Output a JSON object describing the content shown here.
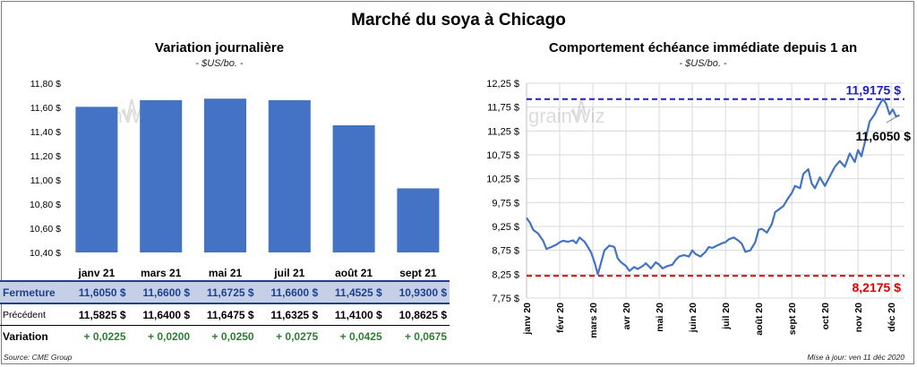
{
  "header": {
    "title": "Marché du soya à Chicago"
  },
  "left": {
    "title": "Variation journalière",
    "unit": "- $US/bo. -"
  },
  "right": {
    "title": "Comportement échéance immédiate depuis 1 an",
    "unit": "- $US/bo. -"
  },
  "watermark": "grainWiz",
  "table": {
    "rows": [
      {
        "label": "Fermeture",
        "values": [
          "11,6050 $",
          "11,6600 $",
          "11,6725 $",
          "11,6600 $",
          "11,4525 $",
          "10,9300 $"
        ]
      },
      {
        "label": "Précédent",
        "values": [
          "11,5825 $",
          "11,6400 $",
          "11,6475 $",
          "11,6325 $",
          "11,4100 $",
          "10,8625 $"
        ]
      },
      {
        "label": "Variation",
        "values": [
          "+ 0,0225",
          "+ 0,0200",
          "+ 0,0250",
          "+ 0,0275",
          "+ 0,0425",
          "+ 0,0675"
        ]
      }
    ]
  },
  "footer": {
    "source": "Source: CME Group",
    "updated": "Mise à jour: ven 11 déc 2020"
  },
  "colors": {
    "bar": "#4472c4",
    "line": "#4472c4",
    "high": "#1f1fbf",
    "low": "#e00000",
    "positive": "#2e7d32"
  },
  "chart_data": [
    {
      "type": "bar",
      "title": "Variation journalière",
      "subtitle": "- $US/bo. -",
      "categories": [
        "janv 21",
        "mars 21",
        "mai 21",
        "juil 21",
        "août 21",
        "sept 21"
      ],
      "values": [
        11.605,
        11.66,
        11.6725,
        11.66,
        11.4525,
        10.93
      ],
      "ylim": [
        10.4,
        11.8
      ],
      "yticks": [
        "10,40 $",
        "10,60 $",
        "10,80 $",
        "11,00 $",
        "11,20 $",
        "11,40 $",
        "11,60 $",
        "11,80 $"
      ],
      "grid": false
    },
    {
      "type": "line",
      "title": "Comportement échéance immédiate depuis 1 an",
      "subtitle": "- $US/bo. -",
      "x_ticks": [
        "janv 20",
        "févr 20",
        "mars 20",
        "avr 20",
        "mai 20",
        "juin 20",
        "juil 20",
        "août 20",
        "sept 20",
        "oct 20",
        "nov 20",
        "déc 20"
      ],
      "ylim": [
        7.75,
        12.25
      ],
      "yticks": [
        "7,75 $",
        "8,25 $",
        "8,75 $",
        "9,25 $",
        "9,75 $",
        "10,25 $",
        "10,75 $",
        "11,25 $",
        "11,75 $",
        "12,25 $"
      ],
      "grid": true,
      "series": [
        {
          "values": [
            [
              0,
              9.43
            ],
            [
              0.1,
              9.33
            ],
            [
              0.2,
              9.18
            ],
            [
              0.35,
              9.1
            ],
            [
              0.5,
              8.95
            ],
            [
              0.6,
              8.78
            ],
            [
              0.75,
              8.82
            ],
            [
              0.9,
              8.87
            ],
            [
              1.0,
              8.92
            ],
            [
              1.1,
              8.95
            ],
            [
              1.25,
              8.93
            ],
            [
              1.4,
              8.96
            ],
            [
              1.5,
              8.9
            ],
            [
              1.6,
              9.02
            ],
            [
              1.75,
              8.93
            ],
            [
              1.85,
              8.82
            ],
            [
              1.95,
              8.7
            ],
            [
              2.05,
              8.5
            ],
            [
              2.15,
              8.25
            ],
            [
              2.25,
              8.5
            ],
            [
              2.35,
              8.75
            ],
            [
              2.5,
              8.85
            ],
            [
              2.65,
              8.82
            ],
            [
              2.75,
              8.58
            ],
            [
              2.85,
              8.5
            ],
            [
              3.0,
              8.42
            ],
            [
              3.1,
              8.32
            ],
            [
              3.25,
              8.4
            ],
            [
              3.35,
              8.36
            ],
            [
              3.5,
              8.42
            ],
            [
              3.6,
              8.48
            ],
            [
              3.75,
              8.37
            ],
            [
              3.9,
              8.5
            ],
            [
              4.0,
              8.45
            ],
            [
              4.1,
              8.37
            ],
            [
              4.25,
              8.42
            ],
            [
              4.4,
              8.45
            ],
            [
              4.5,
              8.55
            ],
            [
              4.6,
              8.62
            ],
            [
              4.75,
              8.65
            ],
            [
              4.9,
              8.62
            ],
            [
              5.0,
              8.75
            ],
            [
              5.1,
              8.67
            ],
            [
              5.25,
              8.62
            ],
            [
              5.4,
              8.72
            ],
            [
              5.5,
              8.82
            ],
            [
              5.6,
              8.8
            ],
            [
              5.75,
              8.85
            ],
            [
              5.9,
              8.9
            ],
            [
              6.0,
              8.92
            ],
            [
              6.1,
              8.98
            ],
            [
              6.25,
              9.02
            ],
            [
              6.4,
              8.95
            ],
            [
              6.5,
              8.88
            ],
            [
              6.6,
              8.72
            ],
            [
              6.75,
              8.75
            ],
            [
              6.9,
              8.92
            ],
            [
              7.0,
              9.18
            ],
            [
              7.1,
              9.2
            ],
            [
              7.25,
              9.12
            ],
            [
              7.4,
              9.3
            ],
            [
              7.5,
              9.55
            ],
            [
              7.6,
              9.6
            ],
            [
              7.75,
              9.68
            ],
            [
              7.9,
              9.85
            ],
            [
              8.0,
              9.95
            ],
            [
              8.1,
              10.1
            ],
            [
              8.25,
              10.05
            ],
            [
              8.35,
              10.35
            ],
            [
              8.5,
              10.45
            ],
            [
              8.6,
              10.15
            ],
            [
              8.7,
              10.05
            ],
            [
              8.85,
              10.28
            ],
            [
              9.0,
              10.1
            ],
            [
              9.15,
              10.3
            ],
            [
              9.3,
              10.5
            ],
            [
              9.45,
              10.62
            ],
            [
              9.6,
              10.5
            ],
            [
              9.75,
              10.78
            ],
            [
              9.9,
              10.6
            ],
            [
              10.0,
              10.85
            ],
            [
              10.1,
              10.72
            ],
            [
              10.2,
              11.0
            ],
            [
              10.35,
              11.45
            ],
            [
              10.5,
              11.6
            ],
            [
              10.6,
              11.75
            ],
            [
              10.75,
              11.92
            ],
            [
              10.85,
              11.82
            ],
            [
              10.95,
              11.6
            ],
            [
              11.05,
              11.7
            ],
            [
              11.15,
              11.55
            ],
            [
              11.25,
              11.58
            ]
          ]
        }
      ],
      "reference_lines": [
        {
          "value": 11.9175,
          "label": "11,9175 $"
        },
        {
          "value": 8.2175,
          "label": "8,2175 $"
        }
      ],
      "annotations": [
        {
          "label": "11,6050 $"
        }
      ]
    }
  ]
}
